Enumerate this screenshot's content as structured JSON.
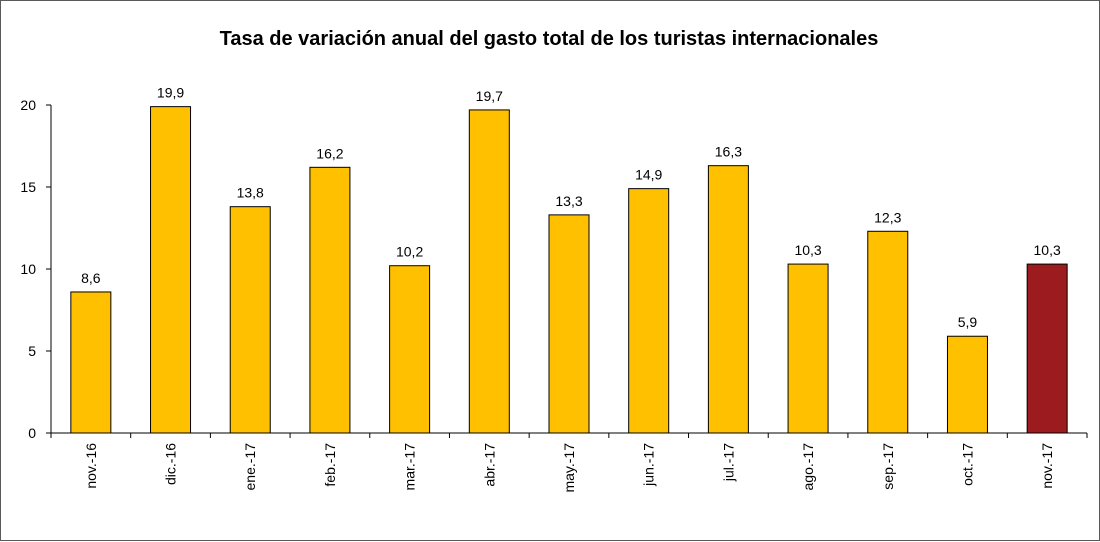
{
  "chart_data": {
    "type": "bar",
    "title": "Tasa de variación anual del gasto total de los turistas internacionales",
    "xlabel": "",
    "ylabel": "",
    "categories": [
      "nov.-16",
      "dic.-16",
      "ene.-17",
      "feb.-17",
      "mar.-17",
      "abr.-17",
      "may.-17",
      "jun.-17",
      "jul.-17",
      "ago.-17",
      "sep.-17",
      "oct.-17",
      "nov.-17"
    ],
    "values": [
      8.6,
      19.9,
      13.8,
      16.2,
      10.2,
      19.7,
      13.3,
      14.9,
      16.3,
      10.3,
      12.3,
      5.9,
      10.3
    ],
    "value_labels": [
      "8,6",
      "19,9",
      "13,8",
      "16,2",
      "10,2",
      "19,7",
      "13,3",
      "14,9",
      "16,3",
      "10,3",
      "12,3",
      "5,9",
      "10,3"
    ],
    "ylim": [
      0,
      20
    ],
    "yticks": [
      0,
      5,
      10,
      15,
      20
    ],
    "ytick_labels": [
      "0",
      "5",
      "10",
      "15",
      "20"
    ],
    "grid": false,
    "colors": {
      "bar": "#FFC000",
      "highlight": "#9B1B1F",
      "outline": "#000000"
    },
    "highlight_index": 12
  }
}
